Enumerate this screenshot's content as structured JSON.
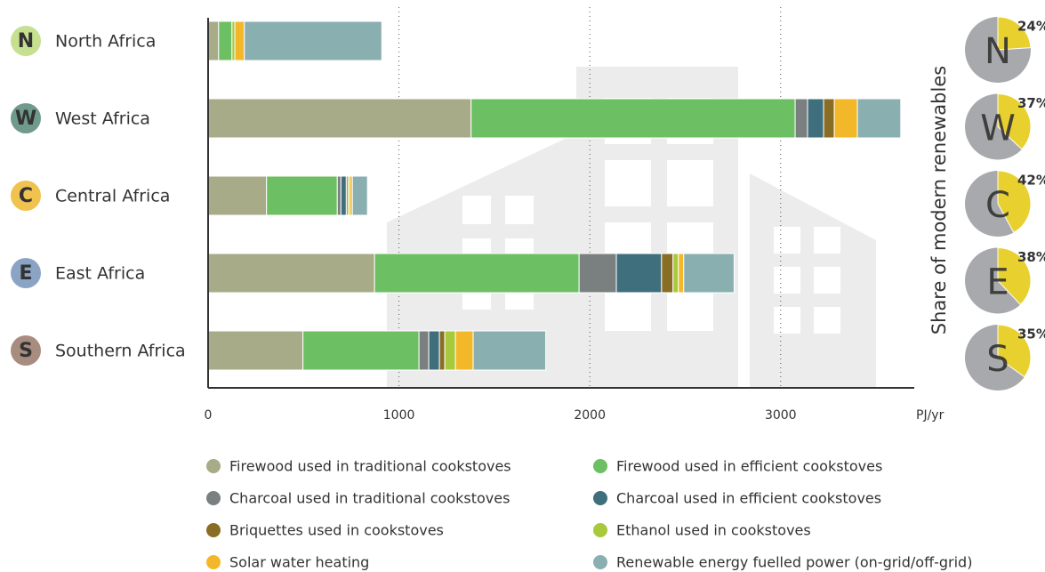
{
  "chart_data": [
    {
      "type": "bar",
      "orientation": "horizontal",
      "stacked": true,
      "categories": [
        "North Africa",
        "West Africa",
        "Central Africa",
        "East Africa",
        "Southern Africa"
      ],
      "category_colors": [
        "#c5e08f",
        "#6f9a8c",
        "#f0c24f",
        "#8ba4c4",
        "#a88c80"
      ],
      "x_unit": "PJ/yr",
      "xlim": [
        0,
        3700
      ],
      "xticks": [
        0,
        1000,
        2000,
        3000
      ],
      "grid": true,
      "series": [
        {
          "name": "Firewood used in traditional cookstoves",
          "color": "#a8ab88",
          "values": [
            55,
            1378,
            306,
            872,
            497
          ]
        },
        {
          "name": "Firewood used in efficient cookstoves",
          "color": "#6cbf63",
          "values": [
            70,
            1698,
            371,
            1072,
            608
          ]
        },
        {
          "name": "Charcoal used in traditional cookstoves",
          "color": "#7a7f7f",
          "values": [
            0,
            65,
            19,
            195,
            51
          ]
        },
        {
          "name": "Charcoal used in efficient cookstoves",
          "color": "#3f6f7c",
          "values": [
            0,
            84,
            28,
            237,
            56
          ]
        },
        {
          "name": "Briquettes used in cookstoves",
          "color": "#8a6d25",
          "values": [
            0,
            56,
            9,
            60,
            28
          ]
        },
        {
          "name": "Ethanol used in cookstoves",
          "color": "#a7c93b",
          "values": [
            15,
            0,
            9,
            28,
            56
          ]
        },
        {
          "name": "Solar water heating",
          "color": "#f2b82a",
          "values": [
            50,
            121,
            14,
            28,
            93
          ]
        },
        {
          "name": "Renewable energy fuelled power (on-grid/off-grid)",
          "color": "#8aafb0",
          "values": [
            720,
            227,
            79,
            264,
            380
          ]
        }
      ]
    },
    {
      "type": "pie",
      "title": "Share of modern renewables",
      "categories": [
        "N",
        "W",
        "C",
        "E",
        "S"
      ],
      "values": [
        24,
        37,
        42,
        38,
        35
      ],
      "value_labels": [
        "24%",
        "37%",
        "42%",
        "38%",
        "35%"
      ],
      "color": "#e8d12f",
      "rest_color": "#a7a9ac"
    }
  ]
}
